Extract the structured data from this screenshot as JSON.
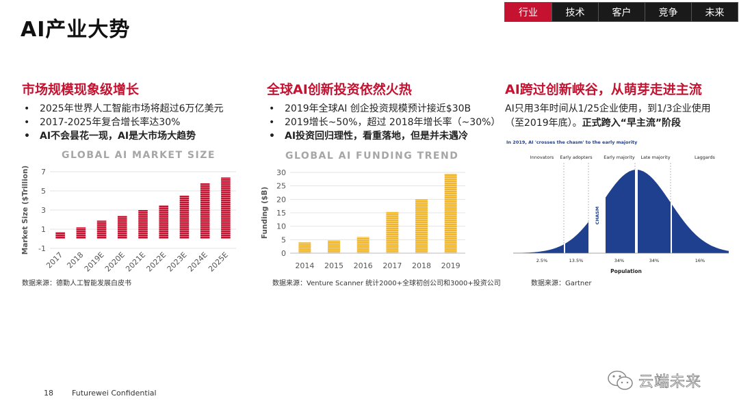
{
  "page": {
    "title": "AI产业大势",
    "page_number": "18",
    "confidential": "Futurewei  Confidential",
    "watermark": "云端未来"
  },
  "tabs": [
    {
      "label": "行业",
      "active": true
    },
    {
      "label": "技术",
      "active": false
    },
    {
      "label": "客户",
      "active": false
    },
    {
      "label": "竞争",
      "active": false
    },
    {
      "label": "未来",
      "active": false
    }
  ],
  "col1": {
    "heading": "市场规模现象级增长",
    "bullets": [
      "2025年世界人工智能市场将超过6万亿美元",
      "2017-2025年复合增长率达30%",
      "AI不会昙花一现，AI是大市场大趋势"
    ],
    "chart_title": "GLOBAL AI MARKET SIZE",
    "source": "数据来源：德勤人工智能发展白皮书"
  },
  "col2": {
    "heading": "全球AI创新投资依然火热",
    "bullets": [
      "2019年全球AI 创企投资规模预计接近$30B",
      "2019增长~50%，超过 2018年增长率（~30%）",
      "AI投资回归理性，看重落地，但是并未遇冷"
    ],
    "chart_title": "GLOBAL AI FUNDING TREND",
    "source": "数据来源：Venture Scanner 统计2000+全球初创公司和3000+投资公司"
  },
  "col3": {
    "heading": "AI跨过创新峡谷，从萌芽走进主流",
    "text_plain": "AI只用3年时间从1/25企业使用，到1/3企业使用（至2019年底）。",
    "text_bold": "正式跨入“早主流”阶段",
    "source": "数据来源：Gartner",
    "diagram": {
      "title": "In 2019, AI 'crosses the chasm' to the early majority",
      "stages": [
        "Innovators",
        "Early adopters",
        "Early majority",
        "Late majority",
        "Laggards"
      ],
      "percents": [
        "2.5%",
        "13.5%",
        "34%",
        "34%",
        "16%"
      ],
      "chasm_label": "CHASM",
      "xlabel": "Population",
      "color": "#1f3f8f"
    }
  },
  "chart_data": [
    {
      "type": "bar",
      "title": "GLOBAL AI MARKET SIZE",
      "ylabel": "Market Size ($Trillion)",
      "xlabel": "",
      "categories": [
        "2017",
        "2018",
        "2019E",
        "2020E",
        "2021E",
        "2022E",
        "2023E",
        "2024E",
        "2025E"
      ],
      "values": [
        0.7,
        1.2,
        1.9,
        2.4,
        3.0,
        3.5,
        4.5,
        5.8,
        6.4
      ],
      "ylim": [
        -1,
        7
      ],
      "yticks": [
        "-1",
        "1",
        "3",
        "5",
        "7"
      ],
      "color": "#c41230",
      "grid": true
    },
    {
      "type": "bar",
      "title": "GLOBAL AI FUNDING TREND",
      "ylabel": "Funding ($B)",
      "xlabel": "",
      "categories": [
        "2014",
        "2015",
        "2016",
        "2017",
        "2018",
        "2019"
      ],
      "values": [
        4,
        4.7,
        6,
        15.3,
        20,
        29.5
      ],
      "ylim": [
        0,
        30
      ],
      "yticks": [
        "0",
        "5",
        "10",
        "15",
        "20",
        "25",
        "30"
      ],
      "color": "#f0b52a",
      "grid": true
    }
  ]
}
